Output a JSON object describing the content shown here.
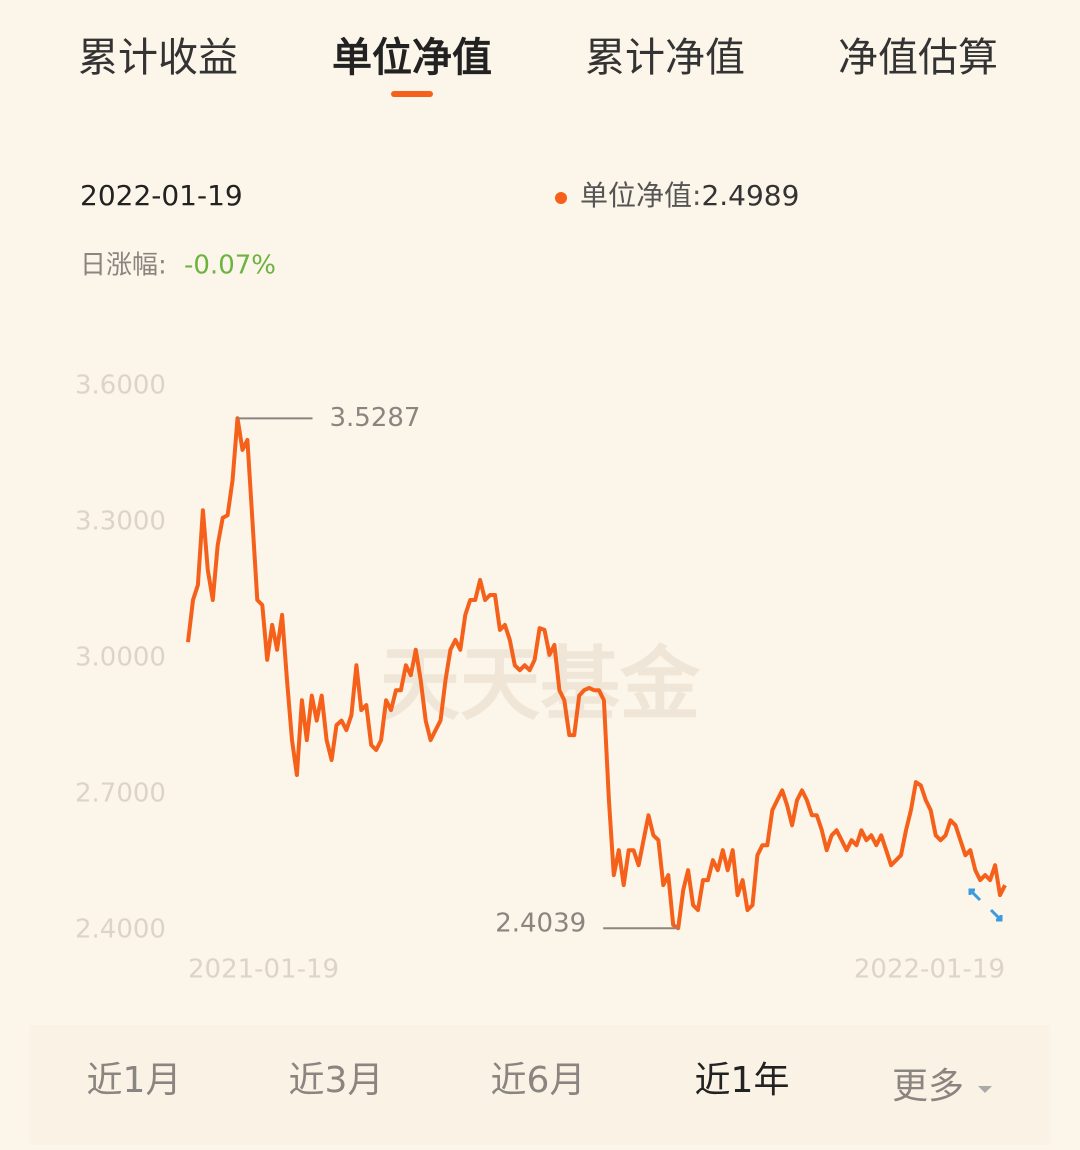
{
  "tabs": [
    "累计收益",
    "单位净值",
    "累计净值",
    "净值估算"
  ],
  "active_tab": 1,
  "info": {
    "date": "2022-01-19",
    "change_label": "日涨幅:",
    "change_value": "-0.07%"
  },
  "periods": [
    "近1月",
    "近3月",
    "近6月",
    "近1年",
    "更多"
  ],
  "active_period": 3,
  "chart_data": {
    "type": "line",
    "watermark": "天天基金",
    "categories": [
      "2021-01-19",
      null,
      null,
      null,
      null,
      null,
      null,
      null,
      null,
      null,
      null,
      null,
      null,
      null,
      null,
      null,
      null,
      null,
      null,
      null,
      null,
      null,
      null,
      null,
      null,
      null,
      null,
      null,
      null,
      null,
      null,
      null,
      null,
      null,
      null,
      null,
      null,
      null,
      null,
      null,
      null,
      null,
      null,
      null,
      null,
      null,
      null,
      null,
      null,
      null,
      null,
      null,
      null,
      null,
      null,
      null,
      null,
      null,
      null,
      null,
      null,
      null,
      null,
      null,
      null,
      null,
      null,
      null,
      null,
      null,
      null,
      null,
      null,
      null,
      null,
      null,
      null,
      null,
      null,
      null,
      null,
      null,
      null,
      null,
      null,
      null,
      null,
      null,
      null,
      null,
      null,
      null,
      null,
      null,
      null,
      null,
      null,
      null,
      null,
      null,
      null,
      null,
      null,
      null,
      null,
      null,
      null,
      null,
      null,
      null,
      null,
      null,
      null,
      null,
      null,
      null,
      null,
      null,
      null,
      null,
      null,
      null,
      null,
      null,
      null,
      null,
      null,
      null,
      null,
      null,
      null,
      null,
      null,
      null,
      null,
      null,
      null,
      null,
      null,
      null,
      null,
      null,
      null,
      null,
      null,
      null,
      null,
      null,
      null,
      null,
      null,
      null,
      null,
      null,
      null,
      null,
      null,
      null,
      null,
      null,
      null,
      null,
      null,
      null,
      null,
      "2022-01-19"
    ],
    "series": [
      {
        "name": "单位净值:",
        "color": "#f5601a",
        "values": [
          3.035,
          3.128,
          3.161,
          3.326,
          3.194,
          3.128,
          3.249,
          3.309,
          3.315,
          3.393,
          3.5287,
          3.459,
          3.481,
          3.304,
          3.128,
          3.117,
          2.996,
          3.073,
          3.018,
          3.095,
          2.951,
          2.819,
          2.742,
          2.907,
          2.819,
          2.917,
          2.862,
          2.917,
          2.819,
          2.775,
          2.852,
          2.862,
          2.841,
          2.874,
          2.984,
          2.885,
          2.896,
          2.808,
          2.797,
          2.819,
          2.907,
          2.885,
          2.929,
          2.929,
          2.984,
          2.962,
          3.018,
          2.951,
          2.862,
          2.819,
          2.841,
          2.862,
          2.951,
          3.018,
          3.04,
          3.018,
          3.095,
          3.128,
          3.128,
          3.172,
          3.128,
          3.139,
          3.139,
          3.062,
          3.073,
          3.04,
          2.984,
          2.973,
          2.984,
          2.973,
          2.996,
          3.066,
          3.062,
          3.007,
          3.029,
          2.929,
          2.907,
          2.83,
          2.83,
          2.917,
          2.929,
          2.934,
          2.929,
          2.929,
          2.907,
          2.687,
          2.521,
          2.576,
          2.499,
          2.576,
          2.576,
          2.543,
          2.598,
          2.653,
          2.609,
          2.598,
          2.499,
          2.521,
          2.411,
          2.4039,
          2.488,
          2.532,
          2.455,
          2.444,
          2.51,
          2.51,
          2.554,
          2.532,
          2.576,
          2.532,
          2.576,
          2.477,
          2.51,
          2.444,
          2.455,
          2.565,
          2.587,
          2.587,
          2.664,
          2.686,
          2.708,
          2.675,
          2.631,
          2.686,
          2.708,
          2.686,
          2.653,
          2.653,
          2.62,
          2.576,
          2.609,
          2.62,
          2.598,
          2.576,
          2.598,
          2.587,
          2.62,
          2.598,
          2.609,
          2.587,
          2.609,
          2.576,
          2.543,
          2.554,
          2.565,
          2.62,
          2.664,
          2.726,
          2.719,
          2.686,
          2.664,
          2.609,
          2.598,
          2.609,
          2.642,
          2.631,
          2.598,
          2.565,
          2.576,
          2.532,
          2.51,
          2.521,
          2.51,
          2.543,
          2.477,
          2.4989
        ]
      }
    ],
    "ylim": [
      2.4,
      3.6
    ],
    "yticks": [
      {
        "value": 2.4,
        "label": "2.4000"
      },
      {
        "value": 2.7,
        "label": "2.7000"
      },
      {
        "value": 3.0,
        "label": "3.0000"
      },
      {
        "value": 3.3,
        "label": "3.3000"
      },
      {
        "value": 3.6,
        "label": "3.6000"
      }
    ],
    "grid": false
  }
}
